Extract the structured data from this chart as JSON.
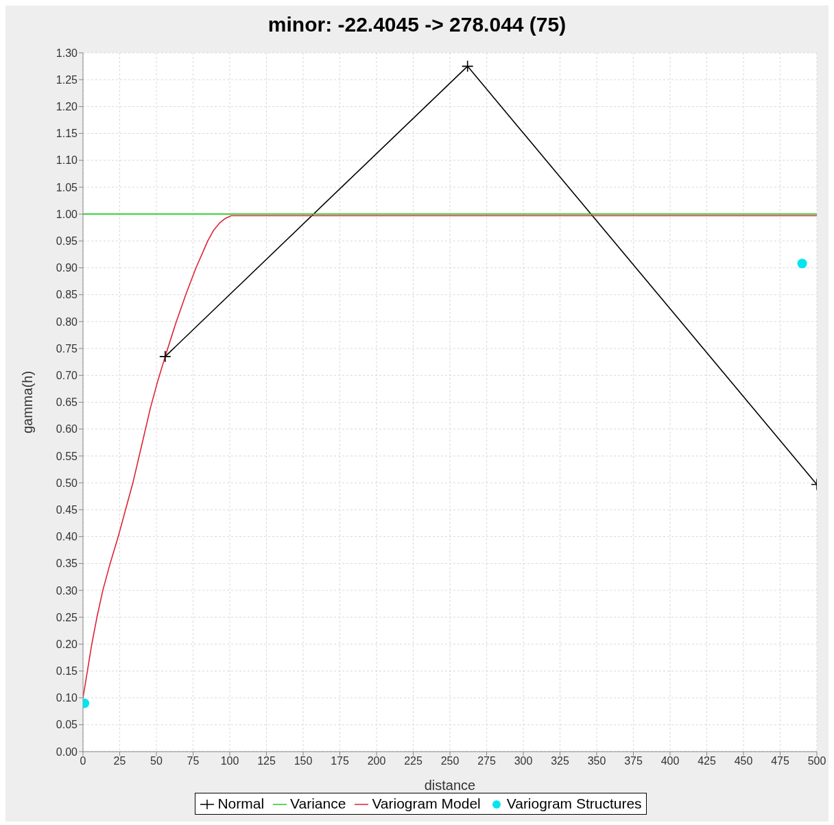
{
  "chart_data": {
    "type": "line",
    "title": "minor: -22.4045 -> 278.044 (75)",
    "xlabel": "distance",
    "ylabel": "gamma(h)",
    "xlim": [
      0,
      500
    ],
    "xticks": [
      0,
      25,
      50,
      75,
      100,
      125,
      150,
      175,
      200,
      225,
      250,
      275,
      300,
      325,
      350,
      375,
      400,
      425,
      450,
      475,
      500
    ],
    "ylim": [
      0,
      1.3
    ],
    "yticks": [
      {
        "value": 0,
        "label": "0.00"
      },
      {
        "value": 0.05,
        "label": "0.05"
      },
      {
        "value": 0.1,
        "label": "0.10"
      },
      {
        "value": 0.15,
        "label": "0.15"
      },
      {
        "value": 0.2,
        "label": "0.20"
      },
      {
        "value": 0.25,
        "label": "0.25"
      },
      {
        "value": 0.3,
        "label": "0.30"
      },
      {
        "value": 0.35,
        "label": "0.35"
      },
      {
        "value": 0.4,
        "label": "0.40"
      },
      {
        "value": 0.45,
        "label": "0.45"
      },
      {
        "value": 0.5,
        "label": "0.50"
      },
      {
        "value": 0.55,
        "label": "0.55"
      },
      {
        "value": 0.6,
        "label": "0.60"
      },
      {
        "value": 0.65,
        "label": "0.65"
      },
      {
        "value": 0.7,
        "label": "0.70"
      },
      {
        "value": 0.75,
        "label": "0.75"
      },
      {
        "value": 0.8,
        "label": "0.80"
      },
      {
        "value": 0.85,
        "label": "0.85"
      },
      {
        "value": 0.9,
        "label": "0.90"
      },
      {
        "value": 0.95,
        "label": "0.95"
      },
      {
        "value": 1,
        "label": "1.00"
      },
      {
        "value": 1.05,
        "label": "1.05"
      },
      {
        "value": 1.1,
        "label": "1.10"
      },
      {
        "value": 1.15,
        "label": "1.15"
      },
      {
        "value": 1.2,
        "label": "1.20"
      },
      {
        "value": 1.25,
        "label": "1.25"
      },
      {
        "value": 1.3,
        "label": "1.30"
      }
    ],
    "grid": true,
    "legend": "bottom",
    "series": [
      {
        "name": "Normal",
        "color": "#000000",
        "marker": "cross",
        "x": [
          56,
          262,
          500
        ],
        "values": [
          0.735,
          1.275,
          0.497
        ]
      },
      {
        "name": "Variance",
        "color": "#22cc22",
        "marker": "none",
        "x": [
          0,
          500
        ],
        "values": [
          1.0,
          1.0
        ]
      },
      {
        "name": "Variogram Model",
        "color": "#dd2233",
        "marker": "none",
        "x": [
          0,
          3,
          6,
          9.5,
          13.5,
          18.5,
          24,
          29,
          34,
          40,
          46,
          51,
          56,
          63,
          70,
          77,
          85,
          89,
          93,
          97,
          101,
          500
        ],
        "values": [
          0.1,
          0.15,
          0.2,
          0.25,
          0.3,
          0.35,
          0.4,
          0.45,
          0.5,
          0.57,
          0.64,
          0.69,
          0.735,
          0.795,
          0.85,
          0.9,
          0.95,
          0.97,
          0.983,
          0.992,
          0.997,
          0.997
        ]
      },
      {
        "name": "Variogram Structures",
        "type": "scatter",
        "color": "#00e5ee",
        "marker": "circle",
        "x": [
          1,
          490
        ],
        "values": [
          0.09,
          0.908
        ]
      }
    ]
  }
}
